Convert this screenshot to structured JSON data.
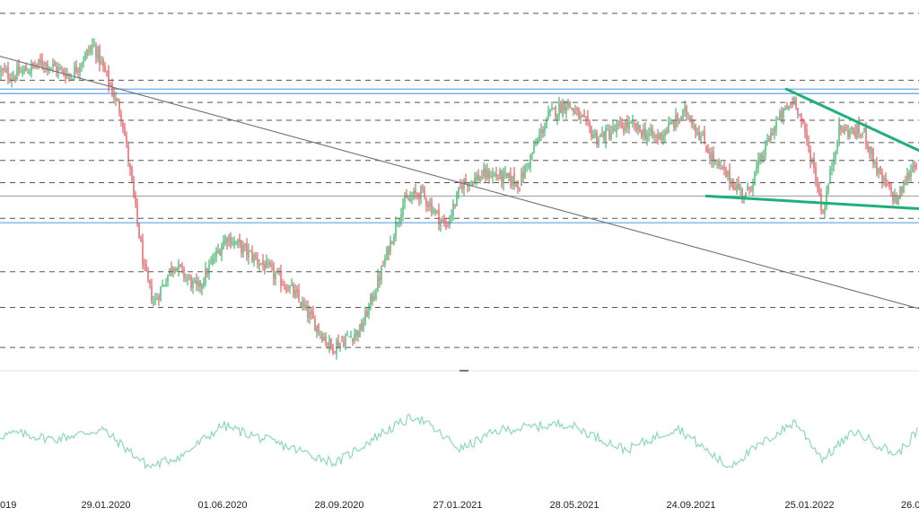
{
  "chart_data": {
    "type": "candlestick",
    "title": "",
    "xlabel": "",
    "ylabel": "",
    "x_tick_labels": [
      "29.01.2020",
      "01.06.2020",
      "28.09.2020",
      "27.01.2021",
      "28.05.2021",
      "24.09.2021",
      "25.01.2022",
      "26.0"
    ],
    "x_tick_label_left_partial": "019",
    "grid": false,
    "price_panel": {
      "description_of_marks": "daily candles, green up / red down",
      "approx_price_path": [
        {
          "date": "2019-09-15",
          "price": 88
        },
        {
          "date": "2019-10-15",
          "price": 86
        },
        {
          "date": "2019-11-20",
          "price": 89
        },
        {
          "date": "2019-12-20",
          "price": 86
        },
        {
          "date": "2020-01-15",
          "price": 93
        },
        {
          "date": "2020-02-15",
          "price": 77
        },
        {
          "date": "2020-03-10",
          "price": 42
        },
        {
          "date": "2020-03-20",
          "price": 35
        },
        {
          "date": "2020-04-10",
          "price": 44
        },
        {
          "date": "2020-05-05",
          "price": 38
        },
        {
          "date": "2020-06-05",
          "price": 50
        },
        {
          "date": "2020-07-10",
          "price": 44
        },
        {
          "date": "2020-08-10",
          "price": 38
        },
        {
          "date": "2020-09-20",
          "price": 25
        },
        {
          "date": "2020-10-20",
          "price": 29
        },
        {
          "date": "2020-11-10",
          "price": 42
        },
        {
          "date": "2020-12-01",
          "price": 57
        },
        {
          "date": "2020-12-20",
          "price": 60
        },
        {
          "date": "2021-01-15",
          "price": 52
        },
        {
          "date": "2021-02-01",
          "price": 62
        },
        {
          "date": "2021-03-01",
          "price": 64
        },
        {
          "date": "2021-04-01",
          "price": 62
        },
        {
          "date": "2021-05-01",
          "price": 77
        },
        {
          "date": "2021-05-20",
          "price": 80
        },
        {
          "date": "2021-06-20",
          "price": 72
        },
        {
          "date": "2021-07-20",
          "price": 75
        },
        {
          "date": "2021-08-20",
          "price": 72
        },
        {
          "date": "2021-09-20",
          "price": 78
        },
        {
          "date": "2021-10-20",
          "price": 66
        },
        {
          "date": "2021-11-20",
          "price": 59
        },
        {
          "date": "2021-12-20",
          "price": 75
        },
        {
          "date": "2022-01-10",
          "price": 81
        },
        {
          "date": "2022-02-01",
          "price": 64
        },
        {
          "date": "2022-02-10",
          "price": 55
        },
        {
          "date": "2022-03-01",
          "price": 74
        },
        {
          "date": "2022-04-01",
          "price": 73
        },
        {
          "date": "2022-04-20",
          "price": 63
        },
        {
          "date": "2022-05-10",
          "price": 58
        },
        {
          "date": "2022-06-01",
          "price": 67
        },
        {
          "date": "2022-06-20",
          "price": 62
        }
      ],
      "horizontal_levels_dashed": [
        100,
        85,
        80,
        76,
        71,
        67,
        62,
        54,
        42,
        34,
        25
      ],
      "horizontal_levels_blue": [
        83,
        82,
        53
      ],
      "horizontal_levels_gray": [
        59
      ],
      "trendline_gray": [
        {
          "date": "2019-09-01",
          "price": 92
        },
        {
          "date": "2022-06-20",
          "price": 33
        }
      ],
      "trendline_green_upper": [
        {
          "date": "2022-01-01",
          "price": 83
        },
        {
          "date": "2022-06-20",
          "price": 68
        }
      ],
      "trendline_green_lower": [
        {
          "date": "2021-10-10",
          "price": 59
        },
        {
          "date": "2022-06-20",
          "price": 56
        }
      ]
    },
    "oscillator_panel": {
      "type": "line",
      "color": "#8fd8b4",
      "approx_values": [
        {
          "date": "2019-09-10",
          "value": 47
        },
        {
          "date": "2019-10-20",
          "value": 52
        },
        {
          "date": "2019-12-01",
          "value": 46
        },
        {
          "date": "2020-01-25",
          "value": 56
        },
        {
          "date": "2020-03-15",
          "value": 18
        },
        {
          "date": "2020-04-20",
          "value": 30
        },
        {
          "date": "2020-06-01",
          "value": 60
        },
        {
          "date": "2020-07-20",
          "value": 44
        },
        {
          "date": "2020-09-25",
          "value": 22
        },
        {
          "date": "2020-11-10",
          "value": 52
        },
        {
          "date": "2020-12-15",
          "value": 70
        },
        {
          "date": "2021-01-30",
          "value": 36
        },
        {
          "date": "2021-03-10",
          "value": 55
        },
        {
          "date": "2021-05-20",
          "value": 62
        },
        {
          "date": "2021-07-20",
          "value": 35
        },
        {
          "date": "2021-09-10",
          "value": 58
        },
        {
          "date": "2021-11-01",
          "value": 18
        },
        {
          "date": "2022-01-10",
          "value": 64
        },
        {
          "date": "2022-02-10",
          "value": 26
        },
        {
          "date": "2022-03-20",
          "value": 54
        },
        {
          "date": "2022-05-10",
          "value": 30
        },
        {
          "date": "2022-06-10",
          "value": 60
        }
      ]
    },
    "colors": {
      "up_candle": "#26a65b",
      "down_candle": "#d9434a",
      "dashed_level": "#555555",
      "blue_level": "#7ab4e6",
      "gray_level": "#9a9a9a",
      "trendline_gray": "#6f6f6f",
      "trendline_green": "#1fb07a",
      "oscillator": "#8fd8b4"
    }
  }
}
